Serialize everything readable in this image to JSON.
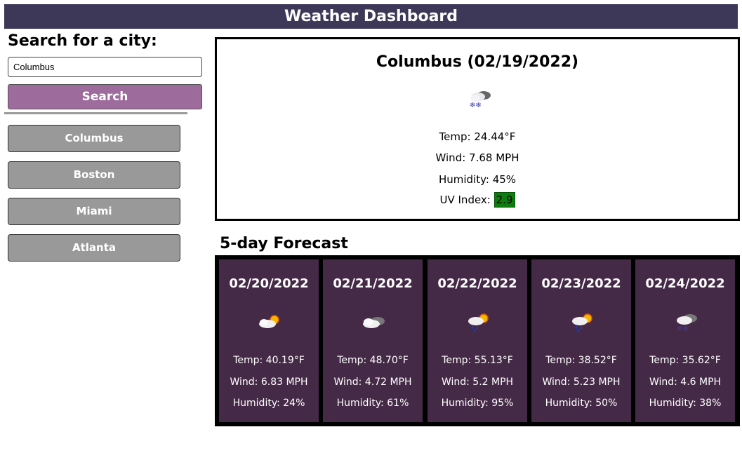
{
  "header": {
    "title": "Weather Dashboard"
  },
  "search": {
    "heading": "Search for a city:",
    "input_value": "Columbus",
    "button_label": "Search"
  },
  "history": [
    {
      "label": "Columbus"
    },
    {
      "label": "Boston"
    },
    {
      "label": "Miami"
    },
    {
      "label": "Atlanta"
    }
  ],
  "current": {
    "title": "Columbus (02/19/2022)",
    "icon": "snow-cloud-icon",
    "temp": "Temp: 24.44°F",
    "wind": "Wind: 7.68 MPH",
    "humidity": "Humidity: 45%",
    "uv_label": "UV Index:",
    "uv_value": "2.9",
    "uv_color": "#0e7d0e"
  },
  "forecast": {
    "heading": "5-day Forecast",
    "days": [
      {
        "date": "02/20/2022",
        "icon": "sun-behind-cloud-icon",
        "temp": "Temp: 40.19°F",
        "wind": "Wind: 6.83 MPH",
        "humidity": "Humidity: 24%"
      },
      {
        "date": "02/21/2022",
        "icon": "cloudy-icon",
        "temp": "Temp: 48.70°F",
        "wind": "Wind: 4.72 MPH",
        "humidity": "Humidity: 61%"
      },
      {
        "date": "02/22/2022",
        "icon": "rain-sun-icon",
        "temp": "Temp: 55.13°F",
        "wind": "Wind: 5.2 MPH",
        "humidity": "Humidity: 95%"
      },
      {
        "date": "02/23/2022",
        "icon": "rain-sun-icon",
        "temp": "Temp: 38.52°F",
        "wind": "Wind: 5.23 MPH",
        "humidity": "Humidity: 50%"
      },
      {
        "date": "02/24/2022",
        "icon": "snow-cloud-icon",
        "temp": "Temp: 35.62°F",
        "wind": "Wind: 4.6 MPH",
        "humidity": "Humidity: 38%"
      }
    ]
  },
  "colors": {
    "header_bg": "#3e3858",
    "search_button": "#9d6b9c",
    "history_button": "#999999",
    "forecast_card": "#452a47"
  }
}
